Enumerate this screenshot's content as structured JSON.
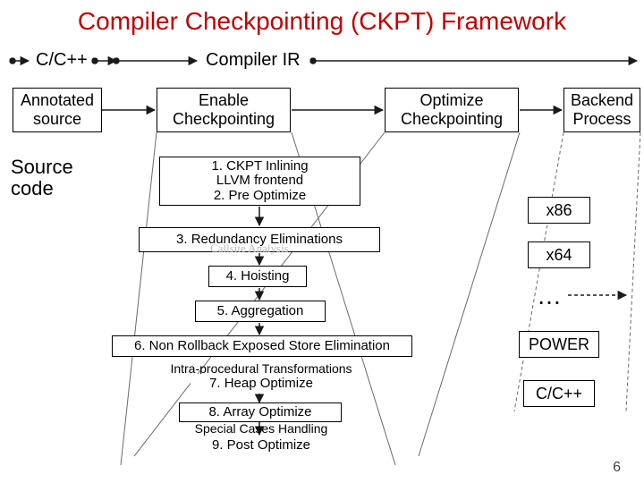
{
  "title": {
    "text": "Compiler Checkpointing (CKPT) Framework",
    "color": "#c00000",
    "fontsize": 28
  },
  "headers": {
    "col1": "C/C++",
    "col2": "Compiler IR"
  },
  "row2": {
    "annotated": "Annotated\nsource",
    "enable": "Enable\nCheckpointing",
    "optimize": "Optimize\nCheckpointing",
    "backend": "Backend\nProcess"
  },
  "sourceLabel": "Source\ncode",
  "steps": {
    "s1": "1. CKPT Inlining\nLLVM frontend\n2. Pre Optimize",
    "s3": "3. Redundancy Eliminations",
    "ghost": "Callsite Analysis",
    "s4": "4. Hoisting",
    "s5": "5. Aggregation",
    "s6": "6. Non Rollback Exposed Store Elimination",
    "subT": "Intra-procedural Transformations",
    "s7": "7. Heap Optimize",
    "s8": "8. Array Optimize",
    "subS": "Special Cases Handling",
    "s9": "9. Post Optimize"
  },
  "outputs": {
    "o1": "x86",
    "o2": "x64",
    "dots": "…",
    "o4": "POWER",
    "o5": "C/C++"
  },
  "page": "6",
  "style": {
    "accent": "#c00000",
    "arrow": "#1a1a1a",
    "trapLine": "#6a6a6a",
    "dashed": "#1a1a1a"
  }
}
